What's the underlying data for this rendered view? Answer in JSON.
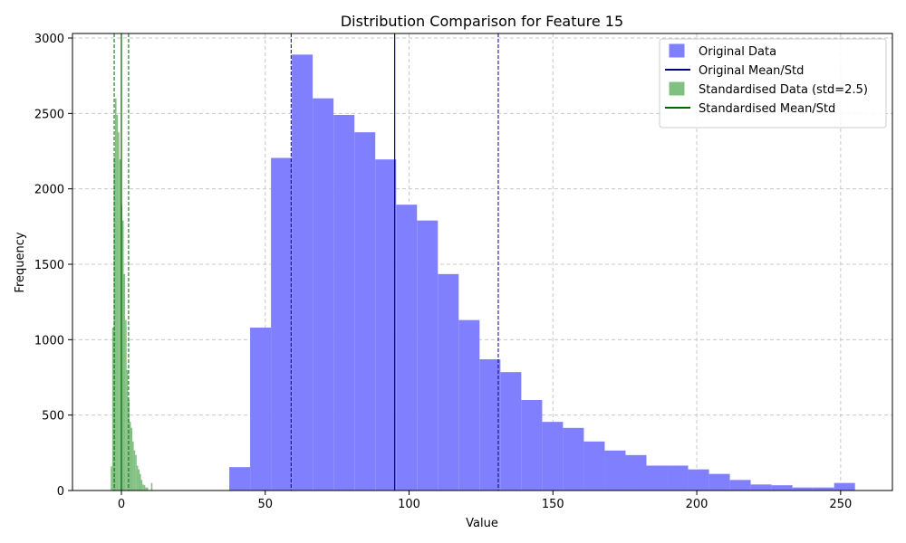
{
  "chart_data": {
    "type": "bar",
    "title": "Distribution Comparison for Feature 15",
    "xlabel": "Value",
    "ylabel": "Frequency",
    "xlim": [
      -17,
      268
    ],
    "ylim": [
      0,
      3030
    ],
    "xticks": [
      0,
      50,
      100,
      150,
      200,
      250
    ],
    "yticks": [
      0,
      500,
      1000,
      1500,
      2000,
      2500,
      3000
    ],
    "grid": true,
    "legend_position": "top-right",
    "series": [
      {
        "name": "Original Data",
        "color": "#8080ff",
        "bin_start": 37.5,
        "bin_width": 7.25,
        "counts": [
          155,
          1080,
          2205,
          2890,
          2600,
          2490,
          2375,
          2195,
          1895,
          1790,
          1435,
          1130,
          870,
          785,
          600,
          455,
          415,
          325,
          265,
          235,
          165,
          165,
          140,
          110,
          70,
          40,
          35,
          20,
          20,
          50
        ]
      },
      {
        "name": "Standardised Data (std=2.5)",
        "color": "#80c080",
        "bin_start": -3.7,
        "bin_width": 0.5,
        "counts": [
          160,
          1080,
          2210,
          2600,
          2490,
          2375,
          2195,
          1895,
          1790,
          1435,
          1130,
          800,
          600,
          455,
          415,
          325,
          265,
          235,
          165,
          140,
          110,
          70,
          40,
          35,
          20,
          20,
          0,
          0,
          50
        ]
      }
    ],
    "reference_lines": [
      {
        "name": "Original Mean/Std",
        "color": "#00008b",
        "mean": 95,
        "lower": 59,
        "upper": 131
      },
      {
        "name": "Standardised Mean/Std",
        "color": "#006400",
        "mean": 0,
        "lower": -2.5,
        "upper": 2.5
      }
    ],
    "legend": [
      {
        "label": "Original Data",
        "kind": "patch",
        "color": "#8080ff"
      },
      {
        "label": "Original Mean/Std",
        "kind": "line",
        "color": "#00008b"
      },
      {
        "label": "Standardised Data (std=2.5)",
        "kind": "patch",
        "color": "#80c080"
      },
      {
        "label": "Standardised Mean/Std",
        "kind": "line",
        "color": "#006400"
      }
    ]
  }
}
